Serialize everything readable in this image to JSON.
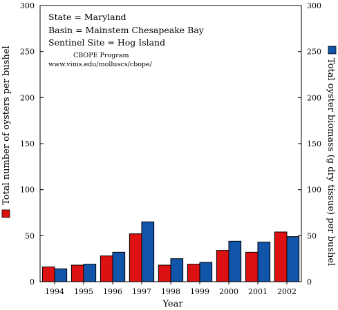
{
  "chart_data": {
    "type": "bar",
    "annotations": {
      "lines": [
        "State = Maryland",
        "Basin = Mainstem Chesapeake Bay",
        "Sentinel Site = Hog Island"
      ],
      "credit": [
        "CBOPE Program",
        "www.vims.edu/molluscs/cbope/"
      ]
    },
    "xlabel": "Year",
    "ylabel_left": "Total number of oysters per bushel",
    "ylabel_right": "Total oyster biomass (g dry tissue) per bushel",
    "categories": [
      "1994",
      "1995",
      "1996",
      "1997",
      "1998",
      "1999",
      "2000",
      "2001",
      "2002"
    ],
    "ylim": [
      0,
      300
    ],
    "yticks": [
      "0",
      "50",
      "100",
      "150",
      "200",
      "250",
      "300"
    ],
    "series": [
      {
        "values": [
          16,
          18,
          28,
          52,
          18,
          19,
          34,
          32,
          54
        ],
        "color": "#dd1111",
        "axis": "left"
      },
      {
        "values": [
          14,
          19,
          32,
          65,
          25,
          21,
          44,
          43,
          49
        ],
        "color": "#1155aa",
        "axis": "right"
      }
    ],
    "grid": false
  }
}
